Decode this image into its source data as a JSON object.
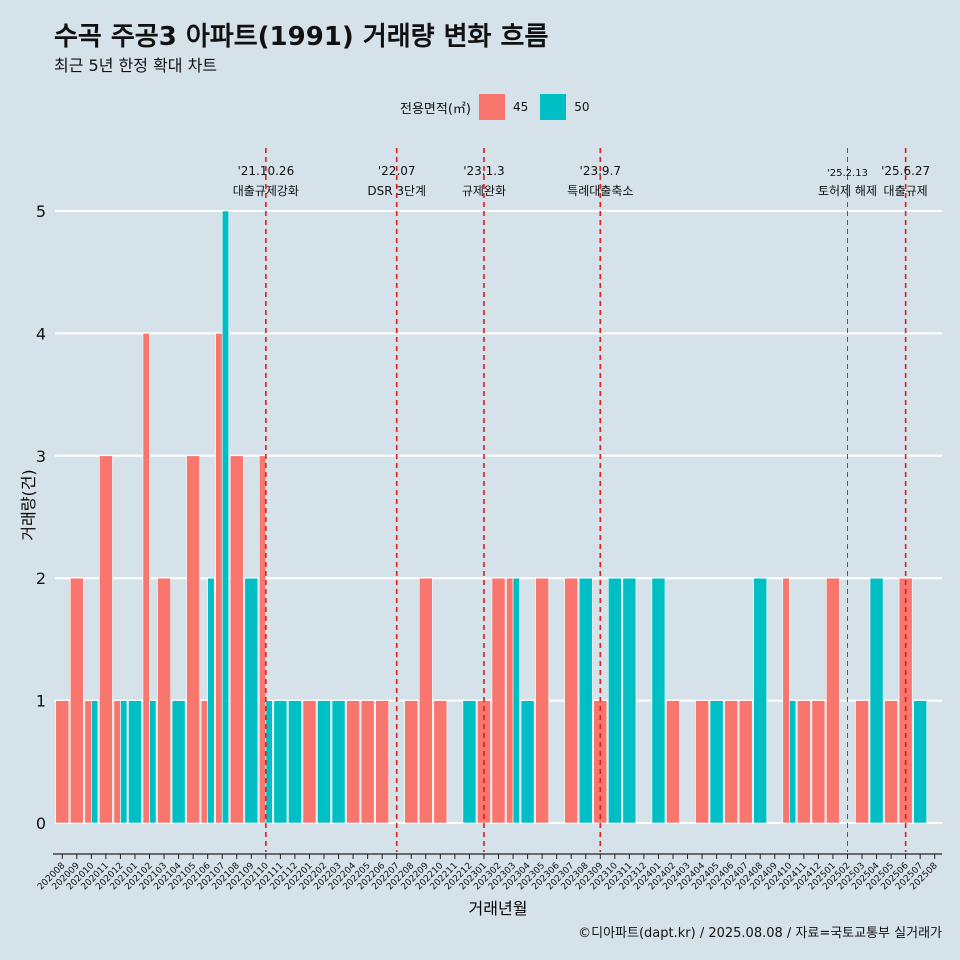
{
  "title": "수곡 주공3 아파트(1991) 거래량 변화 흐름",
  "subtitle": "최근 5년 한정 확대 차트",
  "caption": "©디아파트(dapt.kr) / 2025.08.08 / 자료=국토교통부 실거래가",
  "legend": {
    "title": "전용면적(㎡)",
    "items": [
      {
        "label": "45",
        "color": "#f8766d"
      },
      {
        "label": "50",
        "color": "#00bfc4"
      }
    ]
  },
  "chart_data": {
    "type": "bar",
    "xlabel": "거래년월",
    "ylabel": "거래량(건)",
    "ylim": [
      0,
      5
    ],
    "yticks": [
      0,
      1,
      2,
      3,
      4,
      5
    ],
    "categories": [
      "202008",
      "202009",
      "202010",
      "202011",
      "202012",
      "202101",
      "202102",
      "202103",
      "202104",
      "202105",
      "202106",
      "202107",
      "202108",
      "202109",
      "202110",
      "202111",
      "202112",
      "202201",
      "202202",
      "202203",
      "202204",
      "202205",
      "202206",
      "202207",
      "202208",
      "202209",
      "202210",
      "202211",
      "202212",
      "202301",
      "202302",
      "202303",
      "202304",
      "202305",
      "202306",
      "202307",
      "202308",
      "202309",
      "202310",
      "202311",
      "202312",
      "202401",
      "202402",
      "202403",
      "202404",
      "202405",
      "202406",
      "202407",
      "202408",
      "202409",
      "202410",
      "202411",
      "202412",
      "202501",
      "202502",
      "202503",
      "202504",
      "202505",
      "202506",
      "202507",
      "202508"
    ],
    "series": [
      {
        "name": "45",
        "color": "#f8766d",
        "values": [
          1,
          2,
          1,
          3,
          1,
          0,
          4,
          2,
          0,
          3,
          1,
          4,
          3,
          0,
          3,
          0,
          0,
          1,
          0,
          0,
          1,
          1,
          1,
          0,
          1,
          2,
          1,
          0,
          0,
          1,
          2,
          2,
          0,
          2,
          0,
          2,
          0,
          1,
          0,
          0,
          0,
          0,
          1,
          0,
          1,
          0,
          1,
          1,
          0,
          0,
          2,
          1,
          1,
          2,
          0,
          1,
          0,
          1,
          2,
          0,
          0
        ]
      },
      {
        "name": "50",
        "color": "#00bfc4",
        "values": [
          0,
          0,
          1,
          0,
          1,
          1,
          1,
          0,
          1,
          0,
          2,
          5,
          0,
          2,
          1,
          1,
          1,
          0,
          1,
          1,
          0,
          0,
          0,
          0,
          0,
          0,
          0,
          0,
          1,
          0,
          0,
          2,
          1,
          0,
          0,
          0,
          2,
          0,
          2,
          2,
          0,
          2,
          0,
          0,
          0,
          1,
          0,
          0,
          2,
          0,
          1,
          0,
          0,
          0,
          0,
          0,
          2,
          0,
          0,
          1,
          0
        ]
      }
    ],
    "annotations": [
      {
        "at": "202110",
        "line1": "'21.10.26",
        "line2": "대출규제강화"
      },
      {
        "at": "202207",
        "line1": "'22.07",
        "line2": "DSR 3단계"
      },
      {
        "at": "202301",
        "line1": "'23.1.3",
        "line2": "규제완화"
      },
      {
        "at": "202309",
        "line1": "'23.9.7",
        "line2": "특례대출축소"
      },
      {
        "at": "202502",
        "line1": "'25.2.13",
        "line2": "토허제 해제",
        "small": true
      },
      {
        "at": "202506",
        "line1": "'25.6.27",
        "line2": "대출규제"
      }
    ],
    "line_color": "#e31a1c"
  }
}
